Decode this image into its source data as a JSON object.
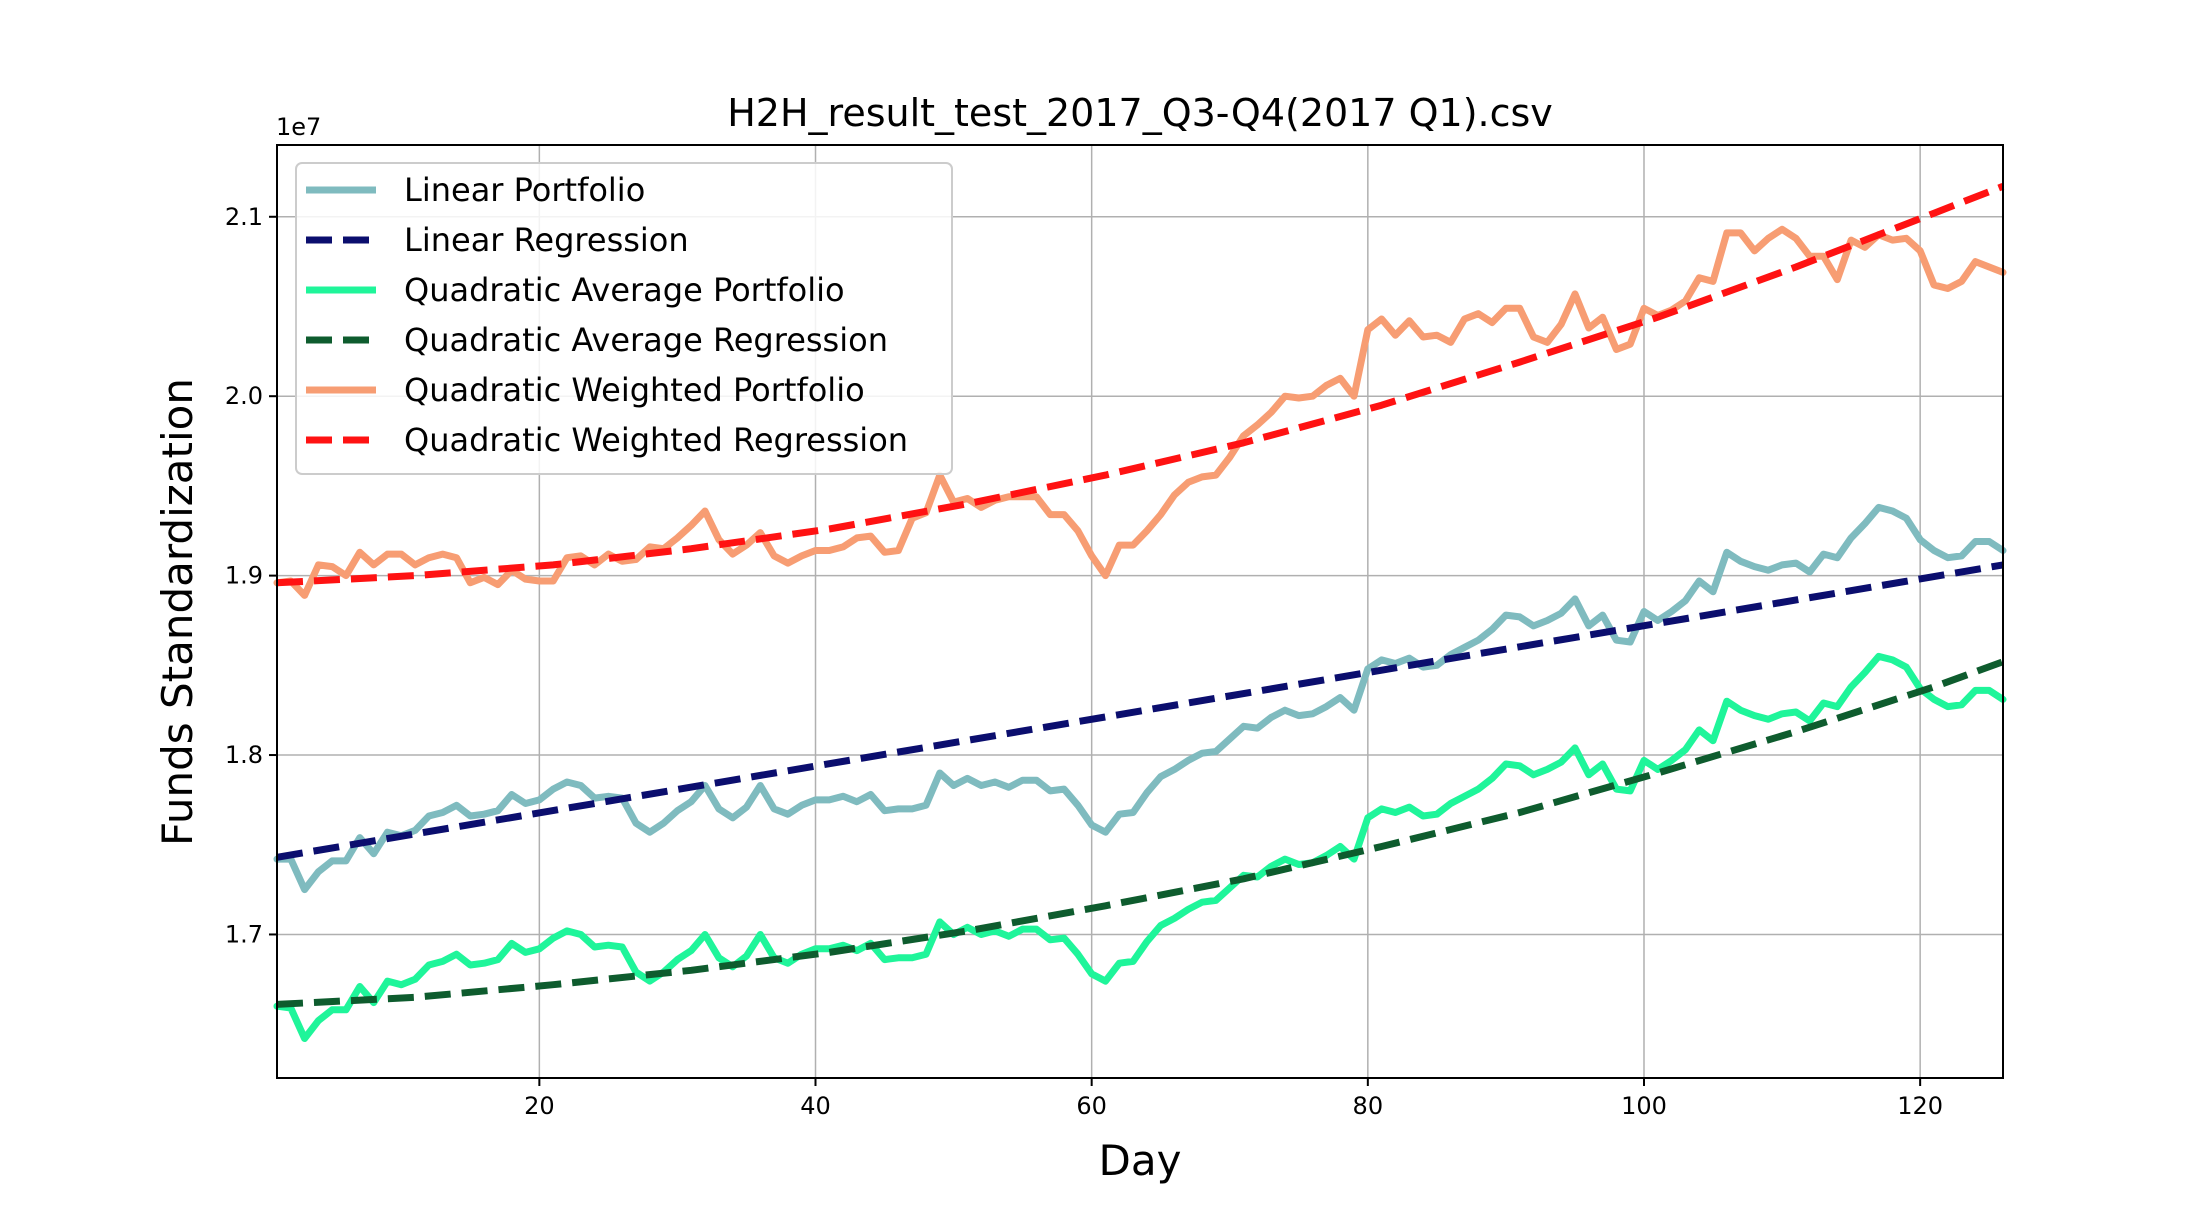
{
  "chart_data": {
    "type": "line",
    "title": "H2H_result_test_2017_Q3-Q4(2017 Q1).csv",
    "xlabel": "Day",
    "ylabel": "Funds Standardization",
    "y_offset_label": "1e7",
    "xlim": [
      1,
      126
    ],
    "ylim": [
      1.62,
      2.14
    ],
    "x_ticks": [
      20,
      40,
      60,
      80,
      100,
      120
    ],
    "x_tick_labels": [
      "20",
      "40",
      "60",
      "80",
      "100",
      "120"
    ],
    "y_ticks": [
      1.7,
      1.8,
      1.9,
      2.0,
      2.1
    ],
    "y_tick_labels": [
      "1.7",
      "1.8",
      "1.9",
      "2.0",
      "2.1"
    ],
    "grid": true,
    "legend_position": "upper-left",
    "series": [
      {
        "name": "Linear Portfolio",
        "color": "#7fbbbf",
        "style": "solid",
        "x": [
          1,
          2,
          3,
          4,
          5,
          6,
          7,
          8,
          9,
          10,
          11,
          12,
          13,
          14,
          15,
          16,
          17,
          18,
          19,
          20,
          21,
          22,
          23,
          24,
          25,
          26,
          27,
          28,
          29,
          30,
          31,
          32,
          33,
          34,
          35,
          36,
          37,
          38,
          39,
          40,
          41,
          42,
          43,
          44,
          45,
          46,
          47,
          48,
          49,
          50,
          51,
          52,
          53,
          54,
          55,
          56,
          57,
          58,
          59,
          60,
          61,
          62,
          63,
          64,
          65,
          66,
          67,
          68,
          69,
          70,
          71,
          72,
          73,
          74,
          75,
          76,
          77,
          78,
          79,
          80,
          81,
          82,
          83,
          84,
          85,
          86,
          87,
          88,
          89,
          90,
          91,
          92,
          93,
          94,
          95,
          96,
          97,
          98,
          99,
          100,
          101,
          102,
          103,
          104,
          105,
          106,
          107,
          108,
          109,
          110,
          111,
          112,
          113,
          114,
          115,
          116,
          117,
          118,
          119,
          120,
          121,
          122,
          123,
          124,
          125,
          126
        ],
        "values": [
          1.742,
          1.742,
          1.725,
          1.735,
          1.741,
          1.741,
          1.754,
          1.745,
          1.757,
          1.755,
          1.758,
          1.766,
          1.768,
          1.772,
          1.766,
          1.767,
          1.769,
          1.778,
          1.773,
          1.775,
          1.781,
          1.785,
          1.783,
          1.776,
          1.777,
          1.776,
          1.762,
          1.757,
          1.762,
          1.769,
          1.774,
          1.783,
          1.77,
          1.765,
          1.771,
          1.783,
          1.77,
          1.767,
          1.772,
          1.775,
          1.775,
          1.777,
          1.774,
          1.778,
          1.769,
          1.77,
          1.77,
          1.772,
          1.79,
          1.783,
          1.787,
          1.783,
          1.785,
          1.782,
          1.786,
          1.786,
          1.78,
          1.781,
          1.772,
          1.761,
          1.757,
          1.767,
          1.768,
          1.779,
          1.788,
          1.792,
          1.797,
          1.801,
          1.802,
          1.809,
          1.816,
          1.815,
          1.821,
          1.825,
          1.822,
          1.823,
          1.827,
          1.832,
          1.825,
          1.848,
          1.853,
          1.851,
          1.854,
          1.849,
          1.85,
          1.856,
          1.86,
          1.864,
          1.87,
          1.878,
          1.877,
          1.872,
          1.875,
          1.879,
          1.887,
          1.872,
          1.878,
          1.864,
          1.863,
          1.88,
          1.875,
          1.88,
          1.886,
          1.897,
          1.891,
          1.913,
          1.908,
          1.905,
          1.903,
          1.906,
          1.907,
          1.902,
          1.912,
          1.91,
          1.921,
          1.929,
          1.938,
          1.936,
          1.932,
          1.92,
          1.914,
          1.91,
          1.911,
          1.919,
          1.919,
          1.914
        ]
      },
      {
        "name": "Linear Regression",
        "color": "#0b0e6e",
        "style": "dashed",
        "x": [
          1,
          126
        ],
        "values": [
          1.743,
          1.906
        ]
      },
      {
        "name": "Quadratic Average Portfolio",
        "color": "#1ff59a",
        "style": "solid",
        "x": [
          1,
          2,
          3,
          4,
          5,
          6,
          7,
          8,
          9,
          10,
          11,
          12,
          13,
          14,
          15,
          16,
          17,
          18,
          19,
          20,
          21,
          22,
          23,
          24,
          25,
          26,
          27,
          28,
          29,
          30,
          31,
          32,
          33,
          34,
          35,
          36,
          37,
          38,
          39,
          40,
          41,
          42,
          43,
          44,
          45,
          46,
          47,
          48,
          49,
          50,
          51,
          52,
          53,
          54,
          55,
          56,
          57,
          58,
          59,
          60,
          61,
          62,
          63,
          64,
          65,
          66,
          67,
          68,
          69,
          70,
          71,
          72,
          73,
          74,
          75,
          76,
          77,
          78,
          79,
          80,
          81,
          82,
          83,
          84,
          85,
          86,
          87,
          88,
          89,
          90,
          91,
          92,
          93,
          94,
          95,
          96,
          97,
          98,
          99,
          100,
          101,
          102,
          103,
          104,
          105,
          106,
          107,
          108,
          109,
          110,
          111,
          112,
          113,
          114,
          115,
          116,
          117,
          118,
          119,
          120,
          121,
          122,
          123,
          124,
          125,
          126
        ],
        "values": [
          1.66,
          1.659,
          1.642,
          1.652,
          1.658,
          1.658,
          1.671,
          1.662,
          1.674,
          1.672,
          1.675,
          1.683,
          1.685,
          1.689,
          1.683,
          1.684,
          1.686,
          1.695,
          1.69,
          1.692,
          1.698,
          1.702,
          1.7,
          1.693,
          1.694,
          1.693,
          1.679,
          1.674,
          1.679,
          1.686,
          1.691,
          1.7,
          1.687,
          1.682,
          1.688,
          1.7,
          1.687,
          1.684,
          1.689,
          1.692,
          1.692,
          1.694,
          1.691,
          1.695,
          1.686,
          1.687,
          1.687,
          1.689,
          1.707,
          1.7,
          1.704,
          1.7,
          1.702,
          1.699,
          1.703,
          1.703,
          1.697,
          1.698,
          1.689,
          1.678,
          1.674,
          1.684,
          1.685,
          1.696,
          1.705,
          1.709,
          1.714,
          1.718,
          1.719,
          1.726,
          1.733,
          1.732,
          1.738,
          1.742,
          1.739,
          1.74,
          1.744,
          1.749,
          1.742,
          1.765,
          1.77,
          1.768,
          1.771,
          1.766,
          1.767,
          1.773,
          1.777,
          1.781,
          1.787,
          1.795,
          1.794,
          1.789,
          1.792,
          1.796,
          1.804,
          1.789,
          1.795,
          1.781,
          1.78,
          1.797,
          1.792,
          1.797,
          1.803,
          1.814,
          1.808,
          1.83,
          1.825,
          1.822,
          1.82,
          1.823,
          1.824,
          1.819,
          1.829,
          1.827,
          1.838,
          1.846,
          1.855,
          1.853,
          1.849,
          1.837,
          1.831,
          1.827,
          1.828,
          1.836,
          1.836,
          1.831
        ]
      },
      {
        "name": "Quadratic Average Regression",
        "color": "#0e5c2e",
        "style": "dashed",
        "x": [
          1,
          11,
          21,
          31,
          41,
          51,
          61,
          71,
          81,
          91,
          101,
          111,
          121,
          126
        ],
        "values": [
          1.661,
          1.665,
          1.672,
          1.68,
          1.69,
          1.702,
          1.716,
          1.731,
          1.749,
          1.768,
          1.79,
          1.813,
          1.838,
          1.852
        ]
      },
      {
        "name": "Quadratic Weighted Portfolio",
        "color": "#f79d73",
        "style": "solid",
        "x": [
          1,
          2,
          3,
          4,
          5,
          6,
          7,
          8,
          9,
          10,
          11,
          12,
          13,
          14,
          15,
          16,
          17,
          18,
          19,
          20,
          21,
          22,
          23,
          24,
          25,
          26,
          27,
          28,
          29,
          30,
          31,
          32,
          33,
          34,
          35,
          36,
          37,
          38,
          39,
          40,
          41,
          42,
          43,
          44,
          45,
          46,
          47,
          48,
          49,
          50,
          51,
          52,
          53,
          54,
          55,
          56,
          57,
          58,
          59,
          60,
          61,
          62,
          63,
          64,
          65,
          66,
          67,
          68,
          69,
          70,
          71,
          72,
          73,
          74,
          75,
          76,
          77,
          78,
          79,
          80,
          81,
          82,
          83,
          84,
          85,
          86,
          87,
          88,
          89,
          90,
          91,
          92,
          93,
          94,
          95,
          96,
          97,
          98,
          99,
          100,
          101,
          102,
          103,
          104,
          105,
          106,
          107,
          108,
          109,
          110,
          111,
          112,
          113,
          114,
          115,
          116,
          117,
          118,
          119,
          120,
          121,
          122,
          123,
          124,
          125,
          126
        ],
        "values": [
          1.896,
          1.897,
          1.889,
          1.906,
          1.905,
          1.9,
          1.913,
          1.906,
          1.912,
          1.912,
          1.906,
          1.91,
          1.912,
          1.91,
          1.896,
          1.899,
          1.895,
          1.903,
          1.898,
          1.897,
          1.897,
          1.91,
          1.911,
          1.906,
          1.912,
          1.908,
          1.909,
          1.916,
          1.915,
          1.921,
          1.928,
          1.936,
          1.92,
          1.912,
          1.917,
          1.924,
          1.911,
          1.907,
          1.911,
          1.914,
          1.914,
          1.916,
          1.921,
          1.922,
          1.913,
          1.914,
          1.932,
          1.935,
          1.956,
          1.941,
          1.943,
          1.938,
          1.942,
          1.944,
          1.944,
          1.944,
          1.934,
          1.934,
          1.925,
          1.911,
          1.9,
          1.917,
          1.917,
          1.925,
          1.934,
          1.945,
          1.952,
          1.955,
          1.956,
          1.966,
          1.978,
          1.984,
          1.991,
          2.0,
          1.999,
          2.0,
          2.006,
          2.01,
          2.0,
          2.037,
          2.043,
          2.034,
          2.042,
          2.033,
          2.034,
          2.03,
          2.043,
          2.046,
          2.041,
          2.049,
          2.049,
          2.033,
          2.03,
          2.04,
          2.057,
          2.038,
          2.044,
          2.026,
          2.029,
          2.049,
          2.045,
          2.048,
          2.053,
          2.066,
          2.064,
          2.091,
          2.091,
          2.081,
          2.088,
          2.093,
          2.088,
          2.078,
          2.078,
          2.065,
          2.087,
          2.083,
          2.09,
          2.087,
          2.088,
          2.081,
          2.062,
          2.06,
          2.064,
          2.075,
          2.072,
          2.069
        ]
      },
      {
        "name": "Quadratic Weighted Regression",
        "color": "#ff1212",
        "style": "dashed",
        "x": [
          1,
          11,
          21,
          31,
          41,
          51,
          61,
          71,
          81,
          91,
          101,
          111,
          121,
          126
        ],
        "values": [
          1.896,
          1.9,
          1.906,
          1.915,
          1.926,
          1.94,
          1.956,
          1.974,
          1.995,
          2.019,
          2.044,
          2.072,
          2.102,
          2.117
        ]
      }
    ]
  }
}
